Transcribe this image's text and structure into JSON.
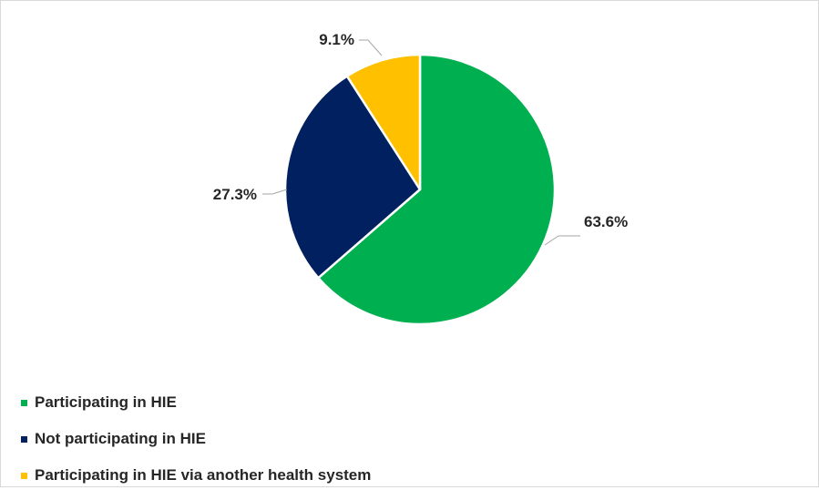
{
  "chart_data": {
    "type": "pie",
    "slices": [
      {
        "label": "Participating in HIE",
        "value": 63.6,
        "value_label": "63.6%",
        "color": "#00b050"
      },
      {
        "label": "Not participating in HIE",
        "value": 27.3,
        "value_label": "27.3%",
        "color": "#002060"
      },
      {
        "label": "Participating in HIE via another health system",
        "value": 9.1,
        "value_label": "9.1%",
        "color": "#ffc000"
      }
    ],
    "legend_position": "bottom-left"
  }
}
